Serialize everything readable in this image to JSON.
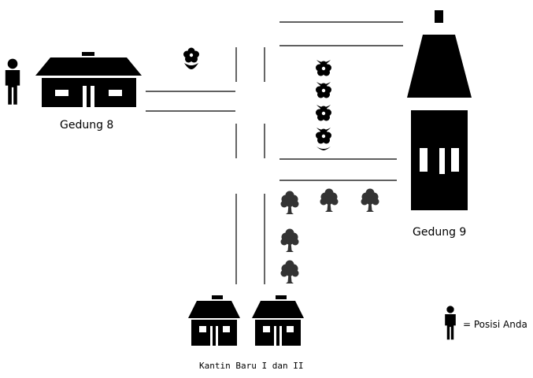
{
  "map": {
    "building_8_label": "Gedung 8",
    "building_9_label": "Gedung 9",
    "canteen_label": "Kantin Baru I dan II",
    "legend_label": "= Posisi Anda",
    "colors": {
      "ink": "#000000",
      "background": "#ffffff"
    },
    "icons": {
      "you_are_here": "person-icon",
      "building": "house-icon",
      "tower": "tower-icon",
      "flower": "flower-icon",
      "tree": "tree-icon"
    }
  }
}
